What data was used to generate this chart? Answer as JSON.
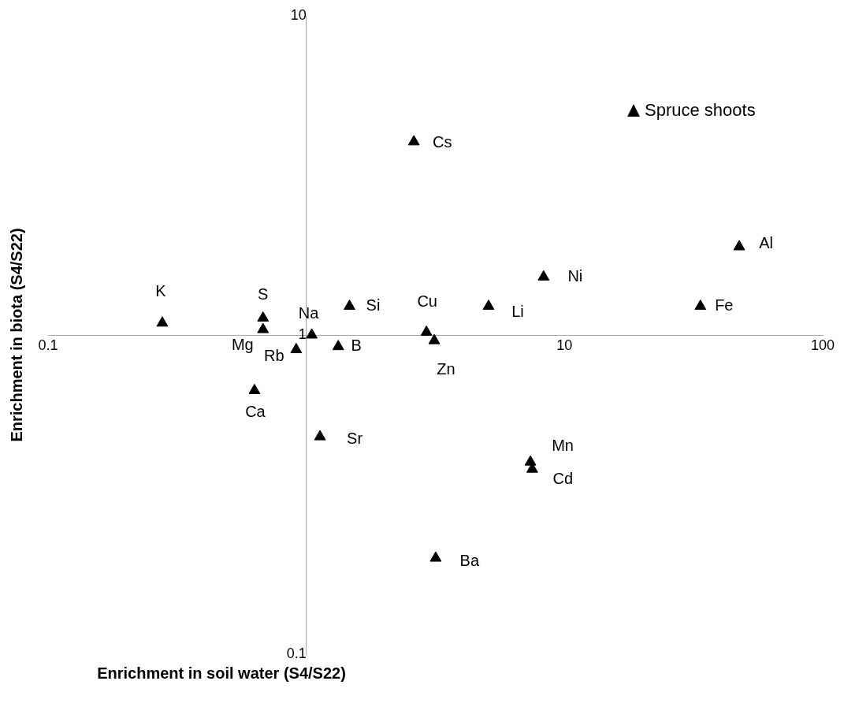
{
  "chart_data": {
    "type": "scatter",
    "xlabel": "Enrichment in soil water (S4/S22)",
    "ylabel": "Enrichment in biota (S4/S22)",
    "log": "xy",
    "xlim": [
      0.1,
      100
    ],
    "ylim": [
      0.1,
      10
    ],
    "xticks": [
      0.1,
      10,
      100
    ],
    "yticks": [
      0.1,
      1,
      10
    ],
    "grid": false,
    "legend": "top right",
    "marker": "triangle",
    "series": [
      {
        "name": "Spruce shoots",
        "color": "#000000",
        "x": [
          0.277,
          0.68,
          0.68,
          0.914,
          1.05,
          1.33,
          1.47,
          0.63,
          1.13,
          2.61,
          2.92,
          3.13,
          3.17,
          5.08,
          8.3,
          7.38,
          7.5,
          33.6,
          47.5
        ],
        "values": [
          1.09,
          1.13,
          1.04,
          0.9,
          1.0,
          0.92,
          1.23,
          0.67,
          0.48,
          4.03,
          1.02,
          0.96,
          0.2,
          1.23,
          1.52,
          0.4,
          0.38,
          1.23,
          1.89
        ]
      }
    ],
    "annotations": [
      {
        "text": "K",
        "x": 0.277,
        "y": 1.09
      },
      {
        "text": "S",
        "x": 0.68,
        "y": 1.13
      },
      {
        "text": "Mg",
        "x": 0.68,
        "y": 1.04
      },
      {
        "text": "Rb",
        "x": 0.914,
        "y": 0.9
      },
      {
        "text": "Na",
        "x": 1.05,
        "y": 1.0
      },
      {
        "text": "B",
        "x": 1.33,
        "y": 0.92
      },
      {
        "text": "Si",
        "x": 1.47,
        "y": 1.23
      },
      {
        "text": "Ca",
        "x": 0.63,
        "y": 0.67
      },
      {
        "text": "Sr",
        "x": 1.13,
        "y": 0.48
      },
      {
        "text": "Cs",
        "x": 2.61,
        "y": 4.03
      },
      {
        "text": "Cu",
        "x": 2.92,
        "y": 1.02
      },
      {
        "text": "Zn",
        "x": 3.13,
        "y": 0.96
      },
      {
        "text": "Ba",
        "x": 3.17,
        "y": 0.2
      },
      {
        "text": "Li",
        "x": 5.08,
        "y": 1.23
      },
      {
        "text": "Ni",
        "x": 8.3,
        "y": 1.52
      },
      {
        "text": "Mn",
        "x": 7.38,
        "y": 0.4
      },
      {
        "text": "Cd",
        "x": 7.5,
        "y": 0.38
      },
      {
        "text": "Fe",
        "x": 33.6,
        "y": 1.23
      },
      {
        "text": "Al",
        "x": 47.5,
        "y": 1.89
      }
    ]
  }
}
